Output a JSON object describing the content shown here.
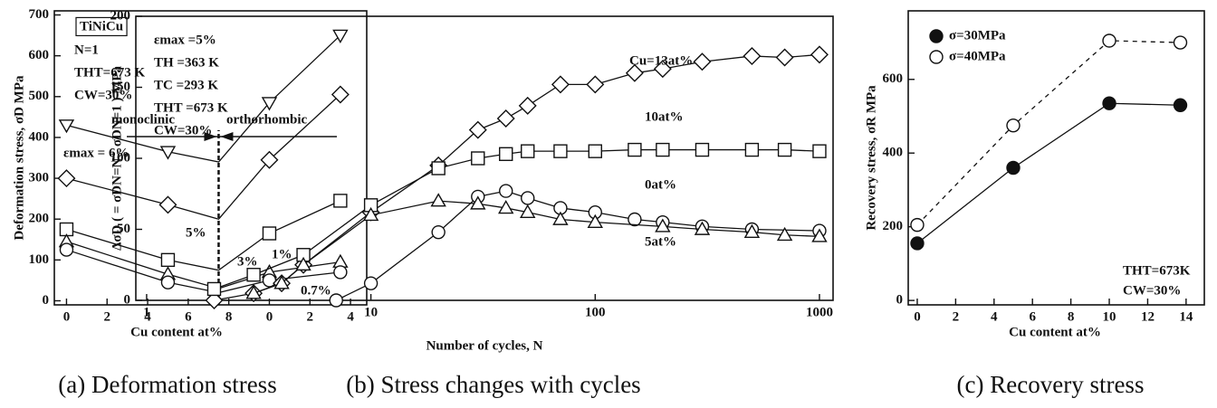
{
  "chart_data": [
    {
      "type": "line",
      "caption": "(a) Deformation stress",
      "xlabel": "Cu content    at%",
      "ylabel": "Deformation stress, σD   MPa",
      "xlim": [
        -0.6,
        14.8
      ],
      "ylim": [
        -10,
        710
      ],
      "xticks": [
        0,
        2,
        4,
        6,
        8,
        {
          "value": 10,
          "label": "0"
        },
        {
          "value": 12,
          "label": "2"
        },
        {
          "value": 14,
          "label": "4"
        }
      ],
      "yticks": [
        0,
        100,
        200,
        300,
        400,
        500,
        600,
        700
      ],
      "boundary_x": 7.5,
      "annotations": [
        "TiNiCu",
        "N=1",
        "THT=673 K",
        "CW=30%",
        "monoclinic",
        "orthorhombic"
      ],
      "series": [
        {
          "name": "εmax = 6%",
          "marker": "tri-down",
          "x": [
            0,
            5,
            7.5,
            10,
            13.5
          ],
          "values": [
            430,
            365,
            340,
            485,
            650
          ]
        },
        {
          "name": "5%",
          "marker": "diamond",
          "x": [
            0,
            5,
            7.5,
            10,
            13.5
          ],
          "values": [
            300,
            235,
            200,
            345,
            505
          ]
        },
        {
          "name": "3%",
          "marker": "square",
          "x": [
            0,
            5,
            7.5,
            10,
            13.5
          ],
          "values": [
            175,
            100,
            75,
            165,
            245
          ]
        },
        {
          "name": "1%",
          "marker": "tri-up",
          "x": [
            0,
            5,
            7.5,
            10,
            13.5
          ],
          "values": [
            145,
            65,
            30,
            70,
            95
          ]
        },
        {
          "name": "0.7%",
          "marker": "circle",
          "x": [
            0,
            5,
            7.5,
            10,
            13.5
          ],
          "values": [
            125,
            45,
            20,
            50,
            70
          ]
        }
      ]
    },
    {
      "type": "line",
      "caption": "(b) Stress changes with cycles",
      "xlabel": "Number of cycles, N",
      "ylabel": "ΔσD ( = σDN=N - σDN=1 )   MPa",
      "xscale": "log",
      "xlim": [
        0.895,
        1150
      ],
      "ylim": [
        0,
        200
      ],
      "xticks": [
        1,
        10,
        100,
        1000
      ],
      "yticks": [
        0,
        50,
        100,
        150,
        200
      ],
      "annotations": [
        "εmax =5%",
        "TH =363 K",
        "TC =293 K",
        "THT =673 K",
        "CW=30%"
      ],
      "series": [
        {
          "name": "Cu=13at%",
          "marker": "diamond",
          "x": [
            2,
            3,
            4,
            5,
            10,
            20,
            30,
            40,
            50,
            70,
            100,
            150,
            200,
            300,
            500,
            700,
            1000
          ],
          "values": [
            0,
            5,
            12,
            25,
            62,
            95,
            120,
            128,
            137,
            152,
            152,
            160,
            163,
            168,
            172,
            171,
            173
          ]
        },
        {
          "name": "10at%",
          "marker": "square",
          "x": [
            2,
            3,
            5,
            10,
            20,
            30,
            40,
            50,
            70,
            100,
            150,
            200,
            300,
            500,
            700,
            1000
          ],
          "values": [
            8,
            18,
            32,
            67,
            93,
            100,
            103,
            105,
            105,
            105,
            106,
            106,
            106,
            106,
            106,
            105
          ]
        },
        {
          "name": "0at%",
          "marker": "circle",
          "x": [
            7,
            10,
            20,
            30,
            40,
            50,
            70,
            100,
            150,
            200,
            300,
            500,
            1000
          ],
          "values": [
            0,
            12,
            48,
            73,
            77,
            72,
            65,
            62,
            57,
            55,
            52,
            50,
            49
          ]
        },
        {
          "name": "5at%",
          "marker": "tri-up",
          "x": [
            3,
            4,
            5,
            10,
            20,
            30,
            40,
            50,
            70,
            100,
            200,
            300,
            500,
            700,
            1000
          ],
          "values": [
            5,
            12,
            25,
            60,
            70,
            68,
            65,
            62,
            57,
            55,
            52,
            50,
            48,
            46,
            45
          ]
        }
      ]
    },
    {
      "type": "line",
      "caption": "(c) Recovery stress",
      "xlabel": "Cu content  at%",
      "ylabel": "Recovery stress, σR   MPa",
      "xlim": [
        -0.47,
        14.95
      ],
      "ylim": [
        -12,
        786
      ],
      "xticks": [
        0,
        2,
        4,
        6,
        8,
        10,
        12,
        14
      ],
      "yticks": [
        0,
        200,
        400,
        600
      ],
      "annotations": [
        "THT=673K",
        "CW=30%"
      ],
      "legend": "upper left",
      "series": [
        {
          "name": "σ=30MPa",
          "marker": "circle",
          "filled": true,
          "x": [
            0,
            5,
            10,
            13.7
          ],
          "values": [
            155,
            360,
            535,
            530
          ]
        },
        {
          "name": "σ=40MPa",
          "marker": "circle",
          "filled": false,
          "dashed": true,
          "x": [
            0,
            5,
            10,
            13.7
          ],
          "values": [
            205,
            475,
            705,
            700
          ]
        }
      ]
    }
  ]
}
